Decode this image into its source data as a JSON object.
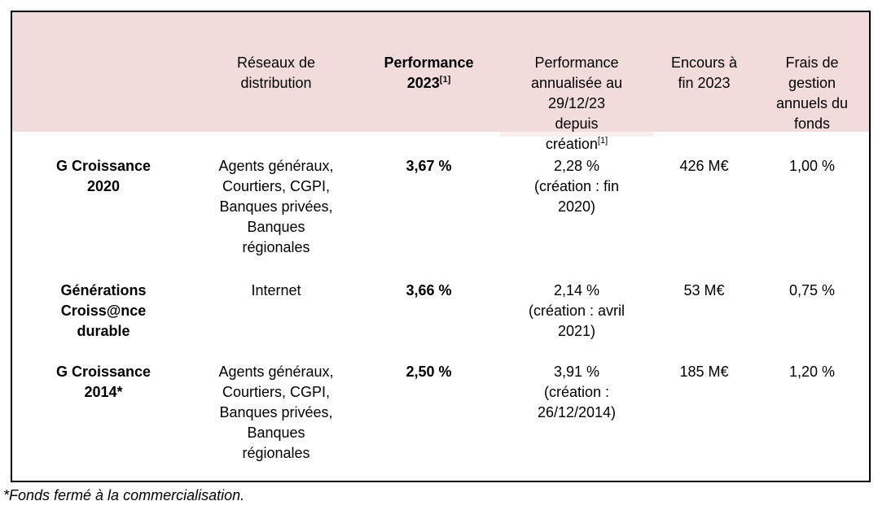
{
  "table": {
    "headers": {
      "name": "",
      "distribution": "Réseaux de\ndistribution",
      "perf2023": {
        "text": "Performance\n2023",
        "sup": "[1]"
      },
      "perf_annualized": {
        "text": "Performance\nannualisée au\n29/12/23\ndepuis\ncréation",
        "sup": "[1]"
      },
      "assets": "Encours à\nfin 2023",
      "fees": "Frais de\ngestion\nannuels du\nfonds"
    },
    "rows": [
      {
        "name": "G Croissance\n2020",
        "distribution": "Agents généraux,\nCourtiers, CGPI,\nBanques privées,\nBanques\nrégionales",
        "perf2023": "3,67 %",
        "perf_annualized": "2,28 %\n(création : fin\n2020)",
        "assets": "426 M€",
        "fees": "1,00 %"
      },
      {
        "name": "Générations\nCroiss@nce\ndurable",
        "distribution": "Internet",
        "perf2023": "3,66 %",
        "perf_annualized": "2,14 %\n(création : avril\n2021)",
        "assets": "53 M€",
        "fees": "0,75 %"
      },
      {
        "name": "G Croissance\n2014*",
        "distribution": "Agents généraux,\nCourtiers, CGPI,\nBanques privées,\nBanques\nrégionales",
        "perf2023": "2,50 %",
        "perf_annualized": "3,91 %\n(création :\n26/12/2014)",
        "assets": "185 M€",
        "fees": "1,20 %"
      }
    ],
    "footnote": "*Fonds fermé à la commercialisation.",
    "colors": {
      "header_bg": "#f2dcdb",
      "header_bg_light": "#f9efee",
      "border": "#000000"
    }
  }
}
